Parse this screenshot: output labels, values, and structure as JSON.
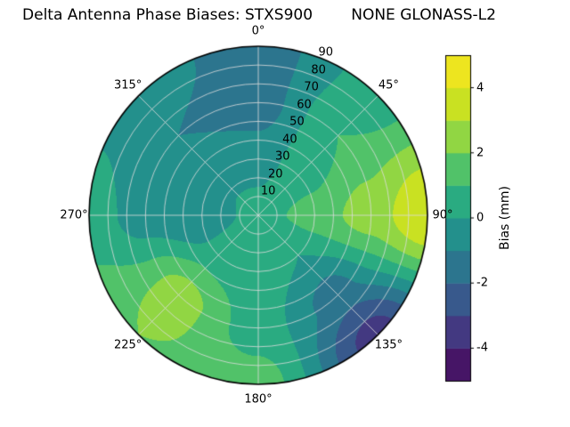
{
  "chart_data": {
    "type": "polar_contour",
    "title": "Delta Antenna Phase Biases: STXS900        NONE GLONASS-L2",
    "theta_zero": "top",
    "theta_direction": "clockwise",
    "angular_ticks": [
      {
        "angle": 0,
        "label": "0°"
      },
      {
        "angle": 45,
        "label": "45°"
      },
      {
        "angle": 90,
        "label": "90°"
      },
      {
        "angle": 135,
        "label": "135°"
      },
      {
        "angle": 180,
        "label": "180°"
      },
      {
        "angle": 225,
        "label": "225°"
      },
      {
        "angle": 270,
        "label": "270°"
      },
      {
        "angle": 315,
        "label": "315°"
      }
    ],
    "radial_ticks": [
      10,
      20,
      30,
      40,
      50,
      60,
      70,
      80,
      90
    ],
    "radial_max": 90,
    "radial_label_angle_deg": 22.5,
    "grid": true,
    "grid_color": "#dcdcdc",
    "outline_color": "#000000",
    "colorbar": {
      "label": "Bias (mm)",
      "ticks": [
        -4,
        -2,
        0,
        2,
        4
      ],
      "min": -5,
      "max": 5,
      "band_step": 1,
      "colormap": "viridis"
    },
    "colormap_stops": [
      "#440154",
      "#482878",
      "#3e4989",
      "#31688e",
      "#26828e",
      "#1f9e89",
      "#35b779",
      "#6dcd59",
      "#b4de2c",
      "#dde318",
      "#fde725"
    ],
    "azimuth_deg": [
      0,
      45,
      90,
      135,
      180,
      225,
      270,
      315
    ],
    "zenith_deg": [
      0,
      30,
      60,
      90
    ],
    "bias_mm": [
      [
        0.5,
        -0.5,
        -1.5,
        -1.5
      ],
      [
        0.5,
        0.5,
        1.0,
        0.5
      ],
      [
        0.5,
        1.5,
        2.5,
        4.0
      ],
      [
        0.5,
        0.0,
        -1.5,
        -3.5
      ],
      [
        0.5,
        0.5,
        0.5,
        1.5
      ],
      [
        0.5,
        0.5,
        2.5,
        2.0
      ],
      [
        0.5,
        -1.0,
        -0.5,
        0.5
      ],
      [
        0.5,
        -0.5,
        -1.0,
        -0.5
      ]
    ]
  }
}
